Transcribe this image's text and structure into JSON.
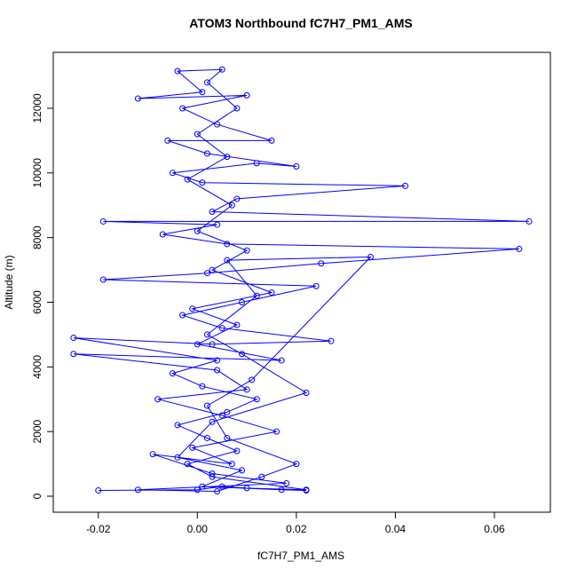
{
  "chart_data": {
    "type": "line",
    "title": "ATOM3 Northbound fC7H7_PM1_AMS",
    "x_label": "fC7H7_PM1_AMS",
    "y_label": "Altitude (m)",
    "markers": "open-circle",
    "xlim": [
      -0.0291,
      0.0713
    ],
    "ylim": [
      -494,
      13729
    ],
    "xticks": [
      -0.02,
      {
        "value": 0,
        "label": "0.00"
      },
      0.02,
      0.04,
      0.06
    ],
    "yticks": [
      0,
      2000,
      4000,
      6000,
      8000,
      10000,
      12000
    ],
    "series": [
      {
        "color": "#0000ff",
        "x": [
          -0.02,
          0.0,
          0.005,
          0.01,
          0.022,
          0.003,
          -0.002,
          0.008,
          0.002,
          -0.004,
          0.006,
          0.012,
          0.001,
          -0.005,
          0.004,
          -0.025,
          0.003,
          0.027,
          0.005,
          -0.003,
          0.009,
          0.024,
          -0.019,
          0.002,
          0.025,
          0.065,
          0.006,
          -0.007,
          0.004,
          -0.019,
          0.067,
          0.003,
          0.008,
          0.042,
          0.001,
          -0.005,
          0.012,
          0.02,
          0.002,
          -0.006,
          0.015,
          0.004,
          -0.003,
          0.01,
          -0.012,
          0.001,
          -0.004,
          0.005,
          0.002,
          0.008,
          0.0,
          0.006,
          -0.002,
          0.007,
          0.0,
          0.01,
          0.003,
          0.015,
          -0.001,
          0.008,
          0.0,
          0.017,
          -0.025,
          0.004,
          0.01,
          -0.008,
          0.005,
          0.016,
          -0.001,
          0.007,
          -0.009,
          0.003,
          0.018,
          -0.012,
          0.004,
          0.013,
          0.02,
          0.006,
          0.002,
          0.011,
          0.035,
          0.006,
          0.012,
          0.002,
          0.009,
          0.022,
          0.003,
          -0.004,
          0.009,
          0.001,
          0.017,
          0.022
        ],
        "values": [
          180,
          200,
          300,
          250,
          200,
          600,
          1000,
          1400,
          1800,
          2200,
          2600,
          3000,
          3400,
          3800,
          4200,
          4900,
          4700,
          4800,
          5200,
          5600,
          6000,
          6500,
          6700,
          6900,
          7200,
          7650,
          7800,
          8100,
          8400,
          8500,
          8500,
          8800,
          9200,
          9600,
          9700,
          10000,
          10300,
          10200,
          10600,
          11000,
          11000,
          11500,
          12000,
          12400,
          12300,
          12500,
          13150,
          13200,
          12800,
          12000,
          11200,
          10500,
          9800,
          9000,
          8200,
          7600,
          7000,
          6300,
          5800,
          5300,
          4700,
          4200,
          4400,
          3900,
          3300,
          3000,
          2500,
          2000,
          1500,
          1000,
          1300,
          700,
          400,
          200,
          150,
          600,
          1000,
          1800,
          2800,
          3600,
          7400,
          7300,
          6200,
          5000,
          4400,
          3200,
          2300,
          1200,
          800,
          300,
          200,
          180
        ]
      }
    ]
  }
}
